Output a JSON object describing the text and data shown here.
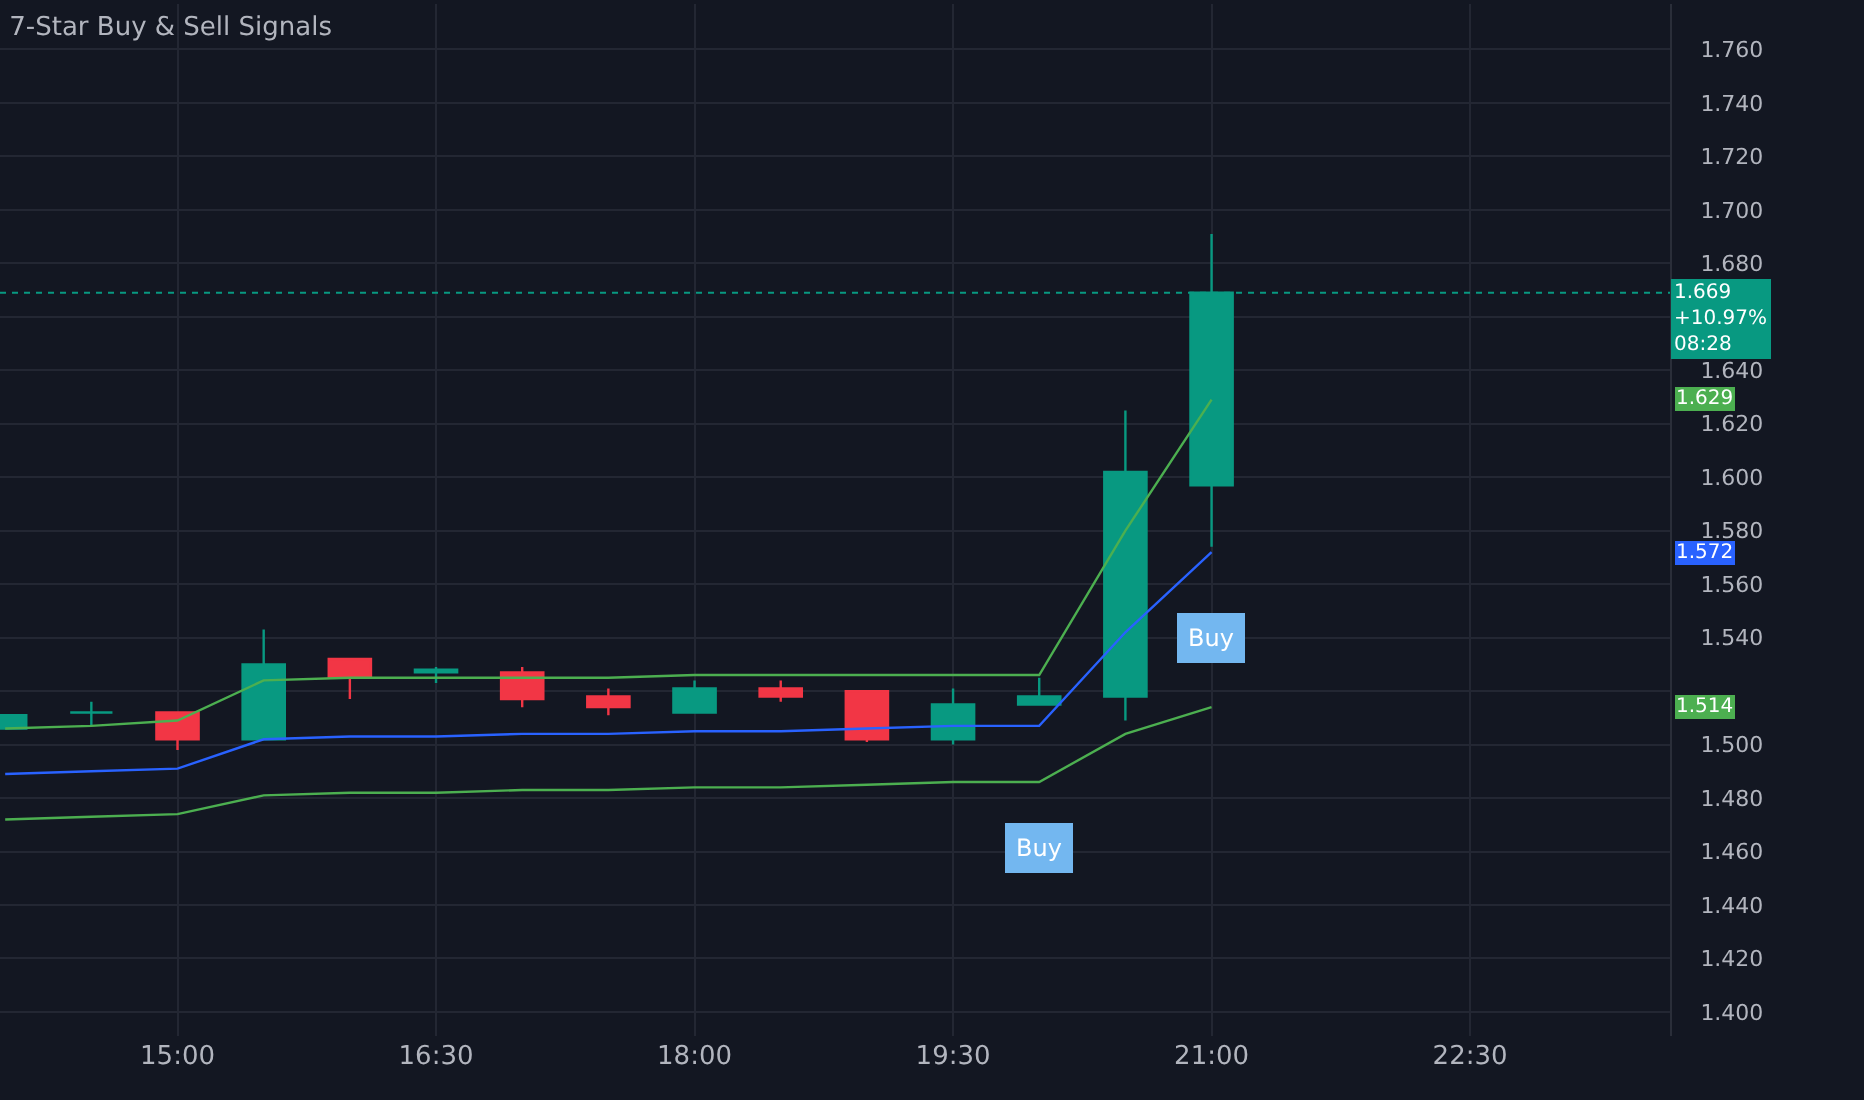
{
  "chart_data": {
    "type": "candlestick",
    "title": "7-Star Buy & Sell Signals",
    "x": [
      14.0,
      14.5,
      15.0,
      15.5,
      16.0,
      16.5,
      17.0,
      17.5,
      18.0,
      18.5,
      19.0,
      19.5,
      20.0,
      20.5,
      21.0
    ],
    "ohlc": [
      [
        1.506,
        1.511,
        1.506,
        1.511
      ],
      [
        1.512,
        1.516,
        1.507,
        1.512
      ],
      [
        1.512,
        1.512,
        1.498,
        1.502
      ],
      [
        1.502,
        1.543,
        1.502,
        1.53
      ],
      [
        1.532,
        1.532,
        1.517,
        1.525
      ],
      [
        1.527,
        1.529,
        1.523,
        1.528
      ],
      [
        1.527,
        1.529,
        1.514,
        1.517
      ],
      [
        1.518,
        1.521,
        1.511,
        1.514
      ],
      [
        1.512,
        1.524,
        1.512,
        1.521
      ],
      [
        1.521,
        1.524,
        1.516,
        1.518
      ],
      [
        1.52,
        1.52,
        1.501,
        1.502
      ],
      [
        1.502,
        1.521,
        1.5,
        1.515
      ],
      [
        1.515,
        1.525,
        1.515,
        1.518
      ],
      [
        1.518,
        1.625,
        1.509,
        1.602
      ],
      [
        1.597,
        1.691,
        1.574,
        1.669
      ]
    ],
    "colors": [
      "#089981",
      "#089981",
      "#f23645",
      "#089981",
      "#f23645",
      "#089981",
      "#f23645",
      "#f23645",
      "#089981",
      "#f23645",
      "#f23645",
      "#089981",
      "#089981",
      "#089981",
      "#089981"
    ],
    "series": [
      {
        "type": "line",
        "color": "#4caf50",
        "x": [
          14.0,
          14.5,
          15.0,
          15.5,
          16.0,
          16.5,
          17.0,
          17.5,
          18.0,
          18.5,
          19.0,
          19.5,
          20.0,
          20.5,
          21.0
        ],
        "values": [
          1.506,
          1.507,
          1.509,
          1.524,
          1.525,
          1.525,
          1.525,
          1.525,
          1.526,
          1.526,
          1.526,
          1.526,
          1.526,
          1.58,
          1.629
        ]
      },
      {
        "type": "line",
        "color": "#2962ff",
        "x": [
          14.0,
          14.5,
          15.0,
          15.5,
          16.0,
          16.5,
          17.0,
          17.5,
          18.0,
          18.5,
          19.0,
          19.5,
          20.0,
          20.5,
          21.0
        ],
        "values": [
          1.489,
          1.49,
          1.491,
          1.502,
          1.503,
          1.503,
          1.504,
          1.504,
          1.505,
          1.505,
          1.506,
          1.507,
          1.507,
          1.542,
          1.572
        ]
      },
      {
        "type": "line",
        "color": "#4caf50",
        "x": [
          14.0,
          14.5,
          15.0,
          15.5,
          16.0,
          16.5,
          17.0,
          17.5,
          18.0,
          18.5,
          19.0,
          19.5,
          20.0,
          20.5,
          21.0
        ],
        "values": [
          1.472,
          1.473,
          1.474,
          1.481,
          1.482,
          1.482,
          1.483,
          1.483,
          1.484,
          1.484,
          1.485,
          1.486,
          1.486,
          1.504,
          1.514
        ]
      }
    ],
    "xlim": [
      13.97,
      23.66
    ],
    "xticks": [
      {
        "value": 15,
        "label": "15:00"
      },
      {
        "value": 16.5,
        "label": "16:30"
      },
      {
        "value": 18,
        "label": "18:00"
      },
      {
        "value": 19.5,
        "label": "19:30"
      },
      {
        "value": 21,
        "label": "21:00"
      },
      {
        "value": 22.5,
        "label": "22:30"
      }
    ],
    "ylim": [
      1.391,
      1.777
    ],
    "yticks": [
      {
        "value": 1.4,
        "label": "1.400"
      },
      {
        "value": 1.42,
        "label": "1.420"
      },
      {
        "value": 1.44,
        "label": "1.440"
      },
      {
        "value": 1.46,
        "label": "1.460"
      },
      {
        "value": 1.48,
        "label": "1.480"
      },
      {
        "value": 1.5,
        "label": "1.500"
      },
      {
        "value": 1.52,
        "label": null
      },
      {
        "value": 1.54,
        "label": "1.540"
      },
      {
        "value": 1.56,
        "label": "1.560"
      },
      {
        "value": 1.58,
        "label": "1.580"
      },
      {
        "value": 1.6,
        "label": "1.600"
      },
      {
        "value": 1.62,
        "label": "1.620"
      },
      {
        "value": 1.64,
        "label": "1.640"
      },
      {
        "value": 1.66,
        "label": null
      },
      {
        "value": 1.68,
        "label": "1.680"
      },
      {
        "value": 1.7,
        "label": "1.700"
      },
      {
        "value": 1.72,
        "label": "1.720"
      },
      {
        "value": 1.74,
        "label": "1.740"
      },
      {
        "value": 1.76,
        "label": "1.760"
      }
    ],
    "grid": true,
    "ref_lines": [
      {
        "axis": "y",
        "value": 1.669,
        "label": "1.669\n+10.97%\n08:28",
        "color": "#089981",
        "line_style": "dotted"
      }
    ],
    "annotations": [
      {
        "text": "Buy",
        "x": 20,
        "y": 1.461
      },
      {
        "text": "Buy",
        "x": 21,
        "y": 1.54
      },
      "1.629",
      "1.572",
      "1.514"
    ]
  }
}
